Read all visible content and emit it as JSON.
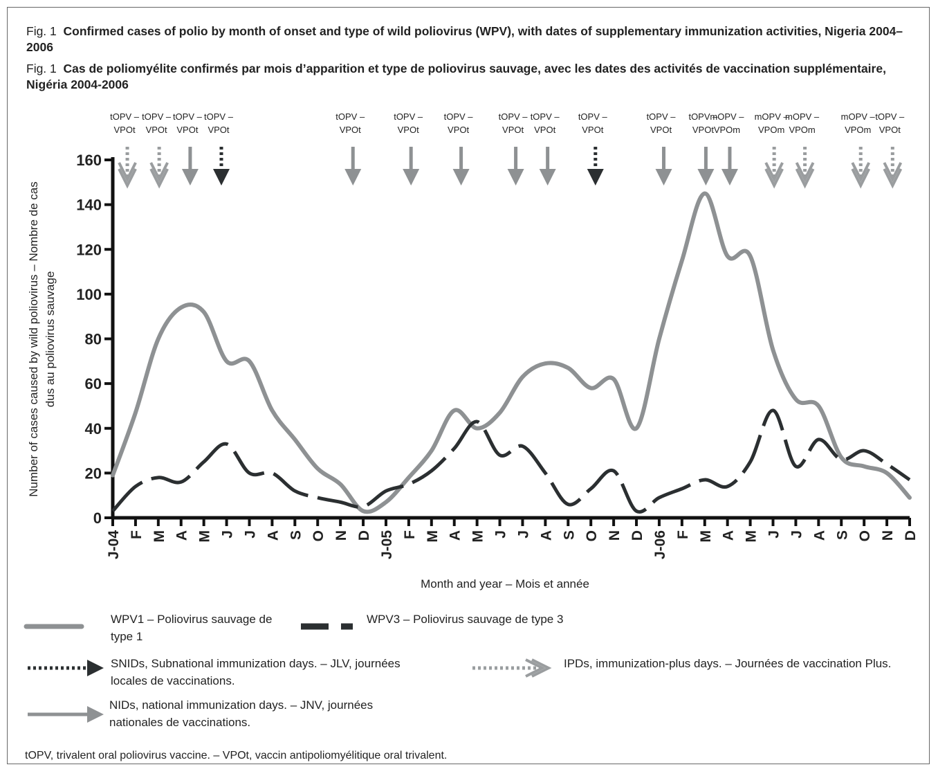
{
  "chart_data": {
    "type": "line",
    "fig_label": "Fig. 1",
    "title": "Confirmed cases of polio by month of onset and type of wild poliovirus (WPV), with dates of supplementary immunization activities, Nigeria 2004–2006",
    "title_fr": "Cas de poliomyélite confirmés par mois d’apparition et type de poliovirus sauvage, avec les dates des activités de vaccination supplémentaire, Nigéria 2004-2006",
    "y_label": [
      "Number of cases caused by wild poliovirus – Nombre de cas",
      "dus au poliovirus sauvage"
    ],
    "x_label": "Month and year – Mois et année",
    "categories": [
      "J-04",
      "F",
      "M",
      "A",
      "M",
      "J",
      "J",
      "A",
      "S",
      "O",
      "N",
      "D",
      "J-05",
      "F",
      "M",
      "A",
      "M",
      "J",
      "J",
      "A",
      "S",
      "O",
      "N",
      "D",
      "J-06",
      "F",
      "M",
      "A",
      "M",
      "J",
      "J",
      "A",
      "S",
      "O",
      "N",
      "D"
    ],
    "series": [
      {
        "name": "WPV1 – Poliovirus sauvage de type 1",
        "color": "#8e9193",
        "style": "solid",
        "values": [
          19,
          47,
          80,
          94,
          92,
          70,
          70,
          48,
          35,
          22,
          15,
          3,
          7,
          18,
          30,
          48,
          40,
          47,
          63,
          69,
          67,
          58,
          62,
          40,
          80,
          115,
          145,
          117,
          117,
          75,
          53,
          50,
          27,
          23,
          20,
          9
        ]
      },
      {
        "name": "WPV3 – Poliovirus sauvage de type 3",
        "color": "#2b2f31",
        "style": "dashed",
        "values": [
          3,
          14,
          18,
          16,
          25,
          33,
          20,
          20,
          12,
          9,
          7,
          5,
          12,
          15,
          21,
          31,
          43,
          28,
          32,
          20,
          6,
          13,
          21,
          3,
          9,
          13,
          17,
          14,
          25,
          48,
          23,
          35,
          26,
          30,
          24,
          17
        ]
      }
    ],
    "ylim": [
      0,
      160
    ],
    "yticks": [
      0,
      20,
      40,
      60,
      80,
      100,
      120,
      140,
      160
    ],
    "campaigns": [
      {
        "x": 0.64,
        "label": [
          "tOPV –",
          "VPOt"
        ],
        "kind": "IPD"
      },
      {
        "x": 2.04,
        "label": [
          "tOPV –",
          "VPOt"
        ],
        "kind": "IPD"
      },
      {
        "x": 3.4,
        "label": [
          "tOPV –",
          "VPOt"
        ],
        "kind": "NID"
      },
      {
        "x": 4.77,
        "label": [
          "tOPV –",
          "VPOt"
        ],
        "kind": "SNID"
      },
      {
        "x": 10.55,
        "label": [
          "tOPV –",
          "VPOt"
        ],
        "kind": "NID"
      },
      {
        "x": 13.1,
        "label": [
          "tOPV –",
          "VPOt"
        ],
        "kind": "NID"
      },
      {
        "x": 15.3,
        "label": [
          "tOPV –",
          "VPOt"
        ],
        "kind": "NID"
      },
      {
        "x": 17.7,
        "label": [
          "tOPV –",
          "VPOt"
        ],
        "kind": "NID"
      },
      {
        "x": 19.1,
        "label": [
          "tOPV –",
          "VPOt"
        ],
        "kind": "NID"
      },
      {
        "x": 21.2,
        "label": [
          "tOPV –",
          "VPOt"
        ],
        "kind": "SNID"
      },
      {
        "x": 24.2,
        "label": [
          "tOPV –",
          "VPOt"
        ],
        "kind": "NID"
      },
      {
        "x": 26.05,
        "label": [
          "tOPV –",
          "VPOt"
        ],
        "kind": "NID"
      },
      {
        "x": 27.1,
        "label": [
          "mOPV –",
          "VPOm"
        ],
        "kind": "NID"
      },
      {
        "x": 29.05,
        "label": [
          "mOPV –",
          "VPOm"
        ],
        "kind": "IPD"
      },
      {
        "x": 30.4,
        "label": [
          "mOPV –",
          "VPOm"
        ],
        "kind": "IPD"
      },
      {
        "x": 32.85,
        "label": [
          "mOPV –",
          "VPOm"
        ],
        "kind": "IPD"
      },
      {
        "x": 34.25,
        "label": [
          "tOPV –",
          "VPOt"
        ],
        "kind": "IPD"
      }
    ],
    "legend": [
      {
        "kind": "SNID",
        "text": "SNIDs, Subnational immunization days. – JLV, journées locales de vaccinations."
      },
      {
        "kind": "IPD",
        "text": "IPDs, immunization-plus days. – Journées de vaccination Plus."
      },
      {
        "kind": "NID",
        "text": "NIDs, national immunization days. – JNV, journées nationales de vaccinations."
      }
    ],
    "footnote": "tOPV, trivalent oral poliovirus vaccine. – VPOt, vaccin antipoliomyélitique oral trivalent."
  }
}
